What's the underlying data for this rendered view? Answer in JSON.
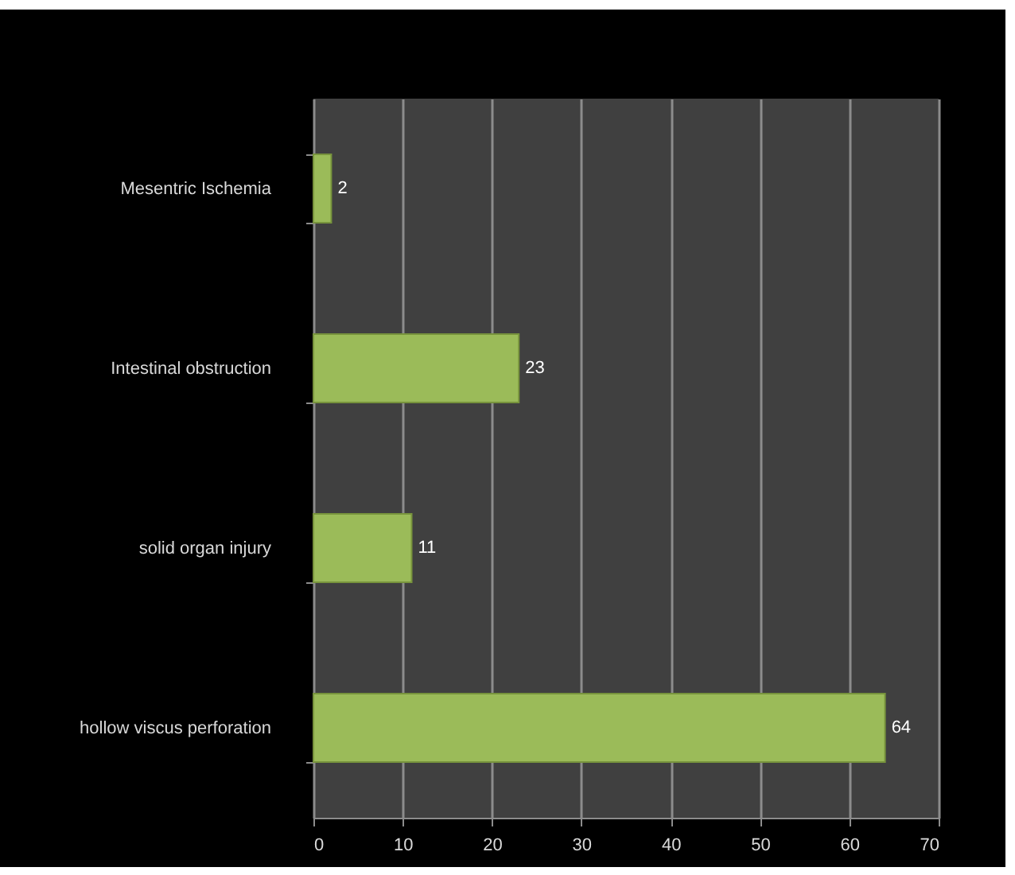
{
  "chart_data": {
    "type": "bar",
    "orientation": "horizontal",
    "categories": [
      "Mesentric Ischemia",
      "Intestinal obstruction",
      "solid organ injury",
      "hollow viscus perforation"
    ],
    "values": [
      2,
      23,
      11,
      64
    ],
    "color": "#9bbb59",
    "xlim": [
      0,
      70
    ],
    "xticks": [
      0,
      10,
      20,
      30,
      40,
      50,
      60,
      70
    ],
    "grid": "x",
    "data_labels": true
  }
}
